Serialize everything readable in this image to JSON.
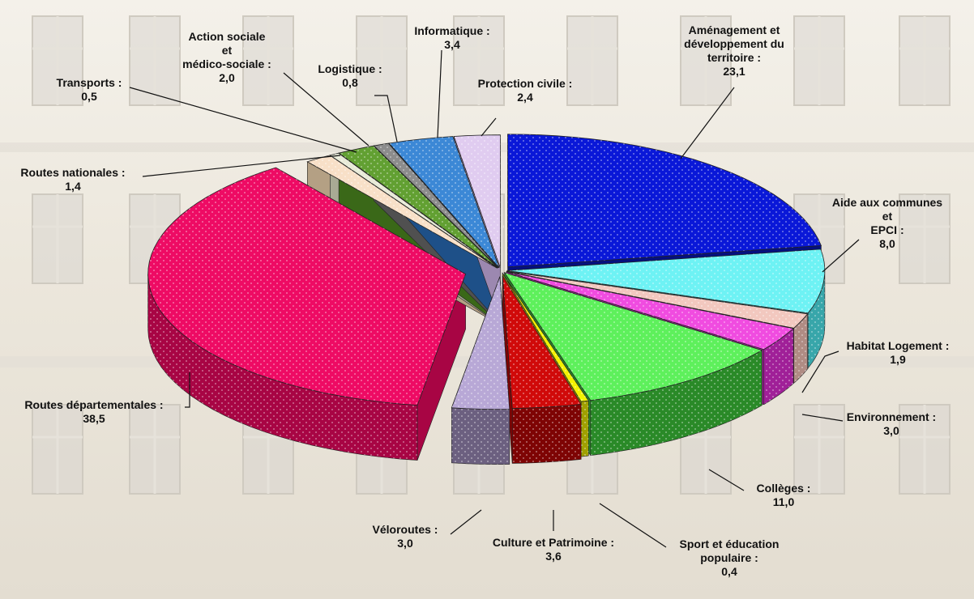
{
  "chart_data": {
    "type": "pie",
    "style": "3d-exploded",
    "title": "",
    "categories": [
      "Aménagement et développement du territoire",
      "Aide aux communes et EPCI",
      "Habitat Logement",
      "Environnement",
      "Collèges",
      "Sport et éducation populaire",
      "Culture et Patrimoine",
      "Véloroutes",
      "Routes départementales",
      "Routes nationales",
      "Transports",
      "Action sociale et médico-sociale",
      "Logistique",
      "Informatique",
      "Protection civile"
    ],
    "values": [
      23.1,
      8.0,
      1.9,
      3.0,
      11.0,
      0.4,
      3.6,
      3.0,
      38.5,
      1.4,
      0.5,
      2.0,
      0.8,
      3.4,
      2.4
    ],
    "colors": [
      "#0a18d8",
      "#6ef2f4",
      "#f2c8bf",
      "#f04ce0",
      "#5ef05c",
      "#f2f200",
      "#d00a0a",
      "#b8a8d6",
      "#ee0b64",
      "#f8e0c8",
      "#e8ead8",
      "#62a032",
      "#8c8c8c",
      "#3c88d6",
      "#e0ccf0"
    ],
    "side_colors": [
      "#05107e",
      "#38a6aa",
      "#b08c84",
      "#a02098",
      "#2a8a28",
      "#a0a000",
      "#7e0404",
      "#6c6080",
      "#a80544",
      "#b4a084",
      "#a8aa94",
      "#3a6818",
      "#505050",
      "#1e5088",
      "#9c88b0"
    ],
    "labels": [
      {
        "lines": [
          "Aménagement et",
          "développement du",
          "territoire :",
          "23,1"
        ]
      },
      {
        "lines": [
          "Aide aux communes",
          "et",
          "EPCI :",
          "8,0"
        ]
      },
      {
        "lines": [
          "Habitat Logement :",
          "1,9"
        ]
      },
      {
        "lines": [
          "Environnement :",
          "3,0"
        ]
      },
      {
        "lines": [
          "Collèges :",
          "11,0"
        ]
      },
      {
        "lines": [
          "Sport et éducation",
          "populaire :",
          "0,4"
        ]
      },
      {
        "lines": [
          "Culture et Patrimoine :",
          "3,6"
        ]
      },
      {
        "lines": [
          "Véloroutes :",
          "3,0"
        ]
      },
      {
        "lines": [
          "Routes départementales :",
          "38,5"
        ]
      },
      {
        "lines": [
          "Routes nationales :",
          "1,4"
        ]
      },
      {
        "lines": [
          "Transports :",
          "0,5"
        ]
      },
      {
        "lines": [
          "Action sociale",
          "et",
          "médico-sociale :",
          "2,0"
        ]
      },
      {
        "lines": [
          "Logistique :",
          "0,8"
        ]
      },
      {
        "lines": [
          "Informatique :",
          "3,4"
        ]
      },
      {
        "lines": [
          "Protection civile :",
          "2,4"
        ]
      }
    ]
  }
}
